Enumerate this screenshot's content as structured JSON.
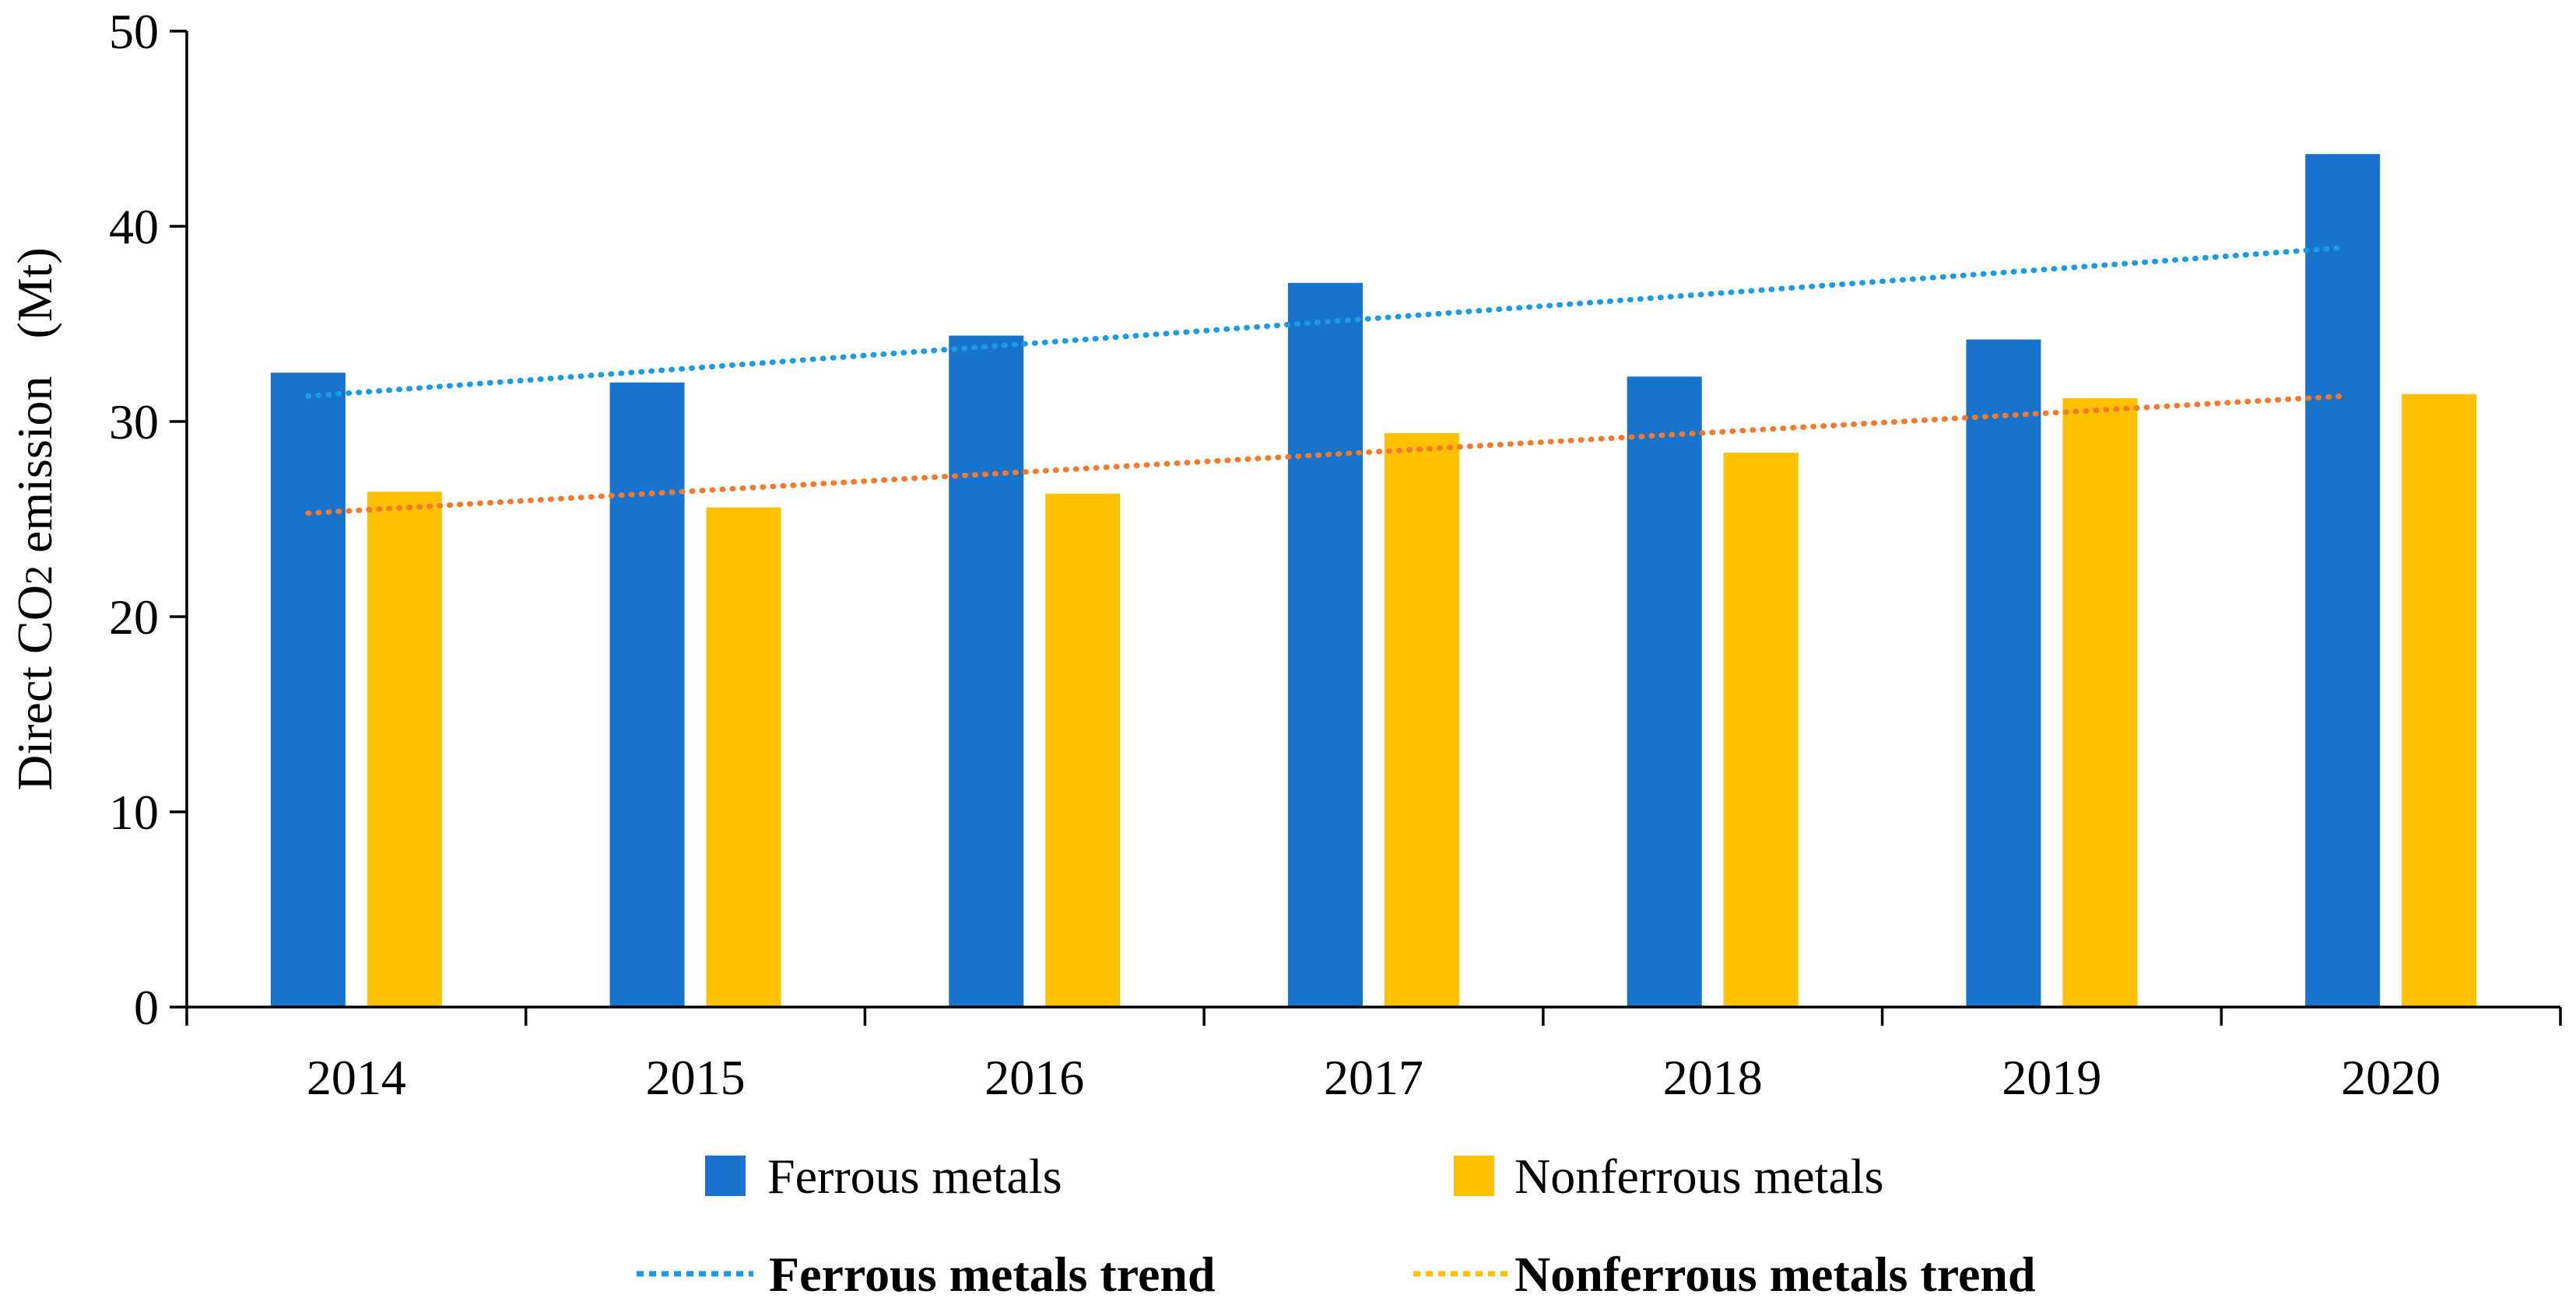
{
  "chart_data": {
    "type": "bar",
    "categories": [
      "2014",
      "2015",
      "2016",
      "2017",
      "2018",
      "2019",
      "2020"
    ],
    "series": [
      {
        "name": "Ferrous metals",
        "color": "#1873CC",
        "values": [
          32.5,
          32.0,
          34.4,
          37.1,
          32.3,
          34.2,
          43.7
        ]
      },
      {
        "name": "Nonferrous metals",
        "color": "#FFC000",
        "values": [
          26.4,
          25.6,
          26.3,
          29.4,
          28.4,
          31.2,
          31.4
        ]
      }
    ],
    "trends": [
      {
        "name": "Ferrous metals trend",
        "legend_color": "#1C9BE0",
        "line_color": "#1C9BE0",
        "start": 31.3,
        "end": 38.9,
        "style": "dotted"
      },
      {
        "name": "Nonferrous metals trend",
        "legend_color": "#FFC000",
        "line_color": "#F5792A",
        "start": 25.3,
        "end": 31.3,
        "style": "dotted"
      }
    ],
    "title": "",
    "xlabel": "",
    "ylabel": {
      "prefix": "Direct CO",
      "subscript": "2",
      "suffix": " emission",
      "unit": "(Mt)"
    },
    "ylim": [
      0,
      50
    ],
    "yticks": [
      0,
      10,
      20,
      30,
      40,
      50
    ],
    "grid": false,
    "legend_position": "bottom"
  }
}
